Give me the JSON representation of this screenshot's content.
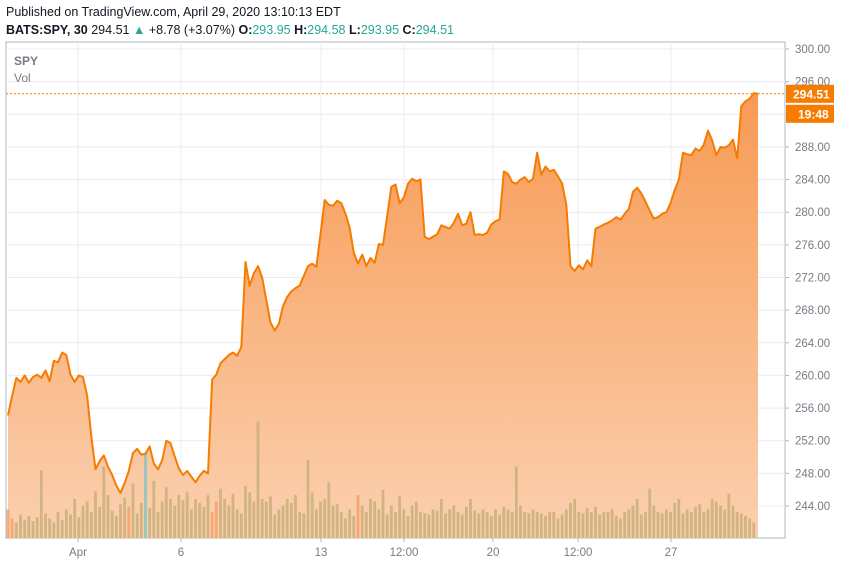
{
  "header": {
    "published": "Published on TradingView.com, April 29, 2020 13:10:13 EDT",
    "symbol": "BATS:SPY, 30",
    "last": "294.51",
    "arrow": "▲",
    "change": "+8.78 (+3.07%)",
    "o_label": "O:",
    "o_value": "293.95",
    "h_label": "H:",
    "h_value": "294.58",
    "l_label": "L:",
    "l_value": "293.95",
    "c_label": "C:",
    "c_value": "294.51"
  },
  "legend": {
    "symbol": "SPY",
    "volume": "Vol"
  },
  "colors": {
    "line": "#f57c00",
    "area_top": "#f89a54",
    "area_bottom": "#fbd0b0",
    "grid": "#e9ecf0",
    "vol_up": "#c8b07a",
    "vol_down": "#f4a06a",
    "vol_special": "#7fc6c6",
    "price_tag": "#f57c00"
  },
  "chart_data": {
    "type": "area",
    "title": "",
    "ylim": [
      240,
      300
    ],
    "y_ticks": [
      "300.00",
      "296.00",
      "292.00",
      "288.00",
      "284.00",
      "280.00",
      "276.00",
      "272.00",
      "268.00",
      "264.00",
      "260.00",
      "256.00",
      "252.00",
      "248.00",
      "244.00"
    ],
    "x_ticks": [
      "Apr",
      "6",
      "13",
      "12:00",
      "20",
      "12:00",
      "27"
    ],
    "last_price_label": "294.51",
    "countdown_label": "19:48",
    "last_price": 294.51,
    "series": [
      {
        "values": [
          255.1,
          257.5,
          259.7,
          259.2,
          260.0,
          259.1,
          259.8,
          260.1,
          259.7,
          260.6,
          259.3,
          261.8,
          261.6,
          262.8,
          262.5,
          260.1,
          259.2,
          260.0,
          259.8,
          257.5,
          252.5,
          248.5,
          249.5,
          250.2,
          248.8,
          247.8,
          246.5,
          245.6,
          246.8,
          248.3,
          250.5,
          251.0,
          250.3,
          250.4,
          251.3,
          249.2,
          248.5,
          249.6,
          252.0,
          251.7,
          250.1,
          248.6,
          247.8,
          248.3,
          247.6,
          246.9,
          247.7,
          248.3,
          248.0,
          259.5,
          260.1,
          261.5,
          262.0,
          262.5,
          262.8,
          262.4,
          263.5,
          273.9,
          271.0,
          272.5,
          273.4,
          272.0,
          269.2,
          266.5,
          265.5,
          266.3,
          268.5,
          269.6,
          270.3,
          270.7,
          271.0,
          272.2,
          273.4,
          273.7,
          273.3,
          277.3,
          281.5,
          280.9,
          280.8,
          281.4,
          281.1,
          279.8,
          278.1,
          275.0,
          273.7,
          274.8,
          273.4,
          274.4,
          273.8,
          276.1,
          276.0,
          279.5,
          283.1,
          283.4,
          281.1,
          281.8,
          283.5,
          284.1,
          283.8,
          284.0,
          277.0,
          276.7,
          277.0,
          277.3,
          278.4,
          278.2,
          278.0,
          278.7,
          279.8,
          278.4,
          278.6,
          280.0,
          277.2,
          277.3,
          277.2,
          277.5,
          278.5,
          278.9,
          279.1,
          285.0,
          284.7,
          283.7,
          283.5,
          284.0,
          284.3,
          283.7,
          284.1,
          287.3,
          284.6,
          285.6,
          285.0,
          285.2,
          284.4,
          283.5,
          280.9,
          273.4,
          272.8,
          273.5,
          273.0,
          274.1,
          273.4,
          278.0,
          278.2,
          278.5,
          278.7,
          279.0,
          279.4,
          279.1,
          279.8,
          280.4,
          282.5,
          283.0,
          282.3,
          281.3,
          280.2,
          279.2,
          279.4,
          279.8,
          280.0,
          281.1,
          282.7,
          284.0,
          287.3,
          287.1,
          287.0,
          287.8,
          287.5,
          288.3,
          290.0,
          288.8,
          287.0,
          288.0,
          287.9,
          288.2,
          288.9,
          286.6,
          293.0,
          293.6,
          293.9,
          294.6,
          294.51
        ]
      }
    ],
    "volume": [
      0.22,
      0.15,
      0.12,
      0.18,
      0.14,
      0.17,
      0.13,
      0.16,
      0.52,
      0.19,
      0.15,
      0.12,
      0.2,
      0.14,
      0.22,
      0.18,
      0.3,
      0.16,
      0.25,
      0.28,
      0.2,
      0.36,
      0.24,
      0.55,
      0.33,
      0.21,
      0.17,
      0.26,
      0.31,
      0.24,
      0.42,
      0.19,
      0.27,
      0.65,
      0.23,
      0.44,
      0.2,
      0.28,
      0.39,
      0.3,
      0.25,
      0.33,
      0.29,
      0.35,
      0.22,
      0.3,
      0.27,
      0.24,
      0.33,
      0.2,
      0.28,
      0.38,
      0.3,
      0.25,
      0.34,
      0.22,
      0.19,
      0.4,
      0.35,
      0.28,
      0.9,
      0.3,
      0.28,
      0.32,
      0.18,
      0.22,
      0.25,
      0.3,
      0.27,
      0.33,
      0.2,
      0.19,
      0.6,
      0.35,
      0.22,
      0.28,
      0.3,
      0.43,
      0.25,
      0.26,
      0.2,
      0.15,
      0.22,
      0.17,
      0.33,
      0.25,
      0.2,
      0.3,
      0.28,
      0.22,
      0.37,
      0.18,
      0.25,
      0.2,
      0.32,
      0.22,
      0.17,
      0.25,
      0.28,
      0.2,
      0.19,
      0.18,
      0.22,
      0.21,
      0.3,
      0.19,
      0.22,
      0.25,
      0.2,
      0.18,
      0.24,
      0.3,
      0.21,
      0.19,
      0.22,
      0.2,
      0.17,
      0.22,
      0.18,
      0.24,
      0.22,
      0.2,
      0.55,
      0.25,
      0.2,
      0.19,
      0.22,
      0.2,
      0.19,
      0.17,
      0.2,
      0.2,
      0.15,
      0.18,
      0.22,
      0.27,
      0.3,
      0.2,
      0.19,
      0.23,
      0.2,
      0.24,
      0.18,
      0.2,
      0.2,
      0.22,
      0.17,
      0.15,
      0.2,
      0.22,
      0.25,
      0.3,
      0.18,
      0.2,
      0.38,
      0.25,
      0.2,
      0.19,
      0.22,
      0.2,
      0.27,
      0.3,
      0.19,
      0.22,
      0.2,
      0.24,
      0.26,
      0.2,
      0.22,
      0.3,
      0.28,
      0.25,
      0.22,
      0.34,
      0.25,
      0.2,
      0.19,
      0.17,
      0.15,
      0.12
    ],
    "volume_color_index": [
      2,
      2,
      1,
      1,
      1,
      1,
      1,
      1,
      1,
      1,
      1,
      1,
      1,
      1,
      1,
      1,
      1,
      1,
      1,
      1,
      1,
      1,
      1,
      1,
      1,
      1,
      1,
      1,
      1,
      2,
      1,
      1,
      1,
      3,
      1,
      1,
      1,
      1,
      1,
      1,
      1,
      1,
      1,
      1,
      1,
      1,
      1,
      1,
      1,
      2,
      2,
      1,
      1,
      1,
      1,
      1,
      1,
      1,
      1,
      1,
      1,
      1,
      1,
      1,
      1,
      1,
      1,
      1,
      1,
      1,
      1,
      1,
      1,
      1,
      1,
      1,
      1,
      1,
      1,
      1,
      1,
      1,
      1,
      1,
      2,
      1,
      1,
      1,
      1,
      1,
      1,
      1,
      1,
      1,
      1,
      1,
      1,
      1,
      1,
      1,
      1,
      1,
      1,
      1,
      1,
      1,
      1,
      1,
      1,
      1,
      1,
      1,
      1,
      1,
      1,
      1,
      1,
      1,
      1,
      1,
      1,
      1,
      1,
      1,
      1,
      1,
      1,
      1,
      1,
      1,
      1,
      1,
      1,
      1,
      1,
      1,
      1,
      1,
      1,
      1,
      1,
      1,
      1,
      1,
      1,
      1,
      1,
      1,
      1,
      1,
      1,
      1,
      1,
      1,
      1,
      1,
      1,
      1,
      1,
      1,
      1,
      1,
      1,
      1,
      1,
      1,
      1,
      1,
      1,
      1,
      1,
      1,
      1,
      1,
      1,
      1,
      1,
      1,
      1,
      1,
      1,
      1,
      1,
      1
    ]
  }
}
